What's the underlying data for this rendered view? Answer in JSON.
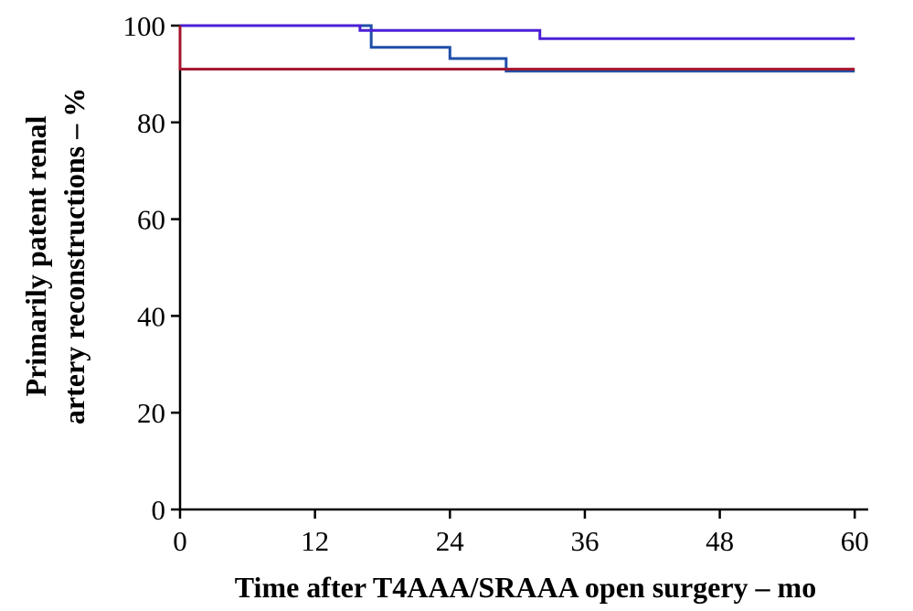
{
  "chart_data": {
    "type": "line",
    "step": "post",
    "xlabel": "Time after T4AAA/SRAAA open surgery – mo",
    "ylabel": [
      "Primarily patent renal",
      "artery reconstructions – %"
    ],
    "xlim": [
      0,
      61.2
    ],
    "xticks": [
      0,
      12,
      24,
      36,
      48,
      60
    ],
    "ylim": [
      0,
      100
    ],
    "yticks": [
      0,
      20,
      40,
      60,
      80,
      100
    ],
    "series": [
      {
        "color": "#1f4fa8",
        "x": [
          0,
          17,
          24,
          29,
          60
        ],
        "values": [
          100,
          95.5,
          93.2,
          90.6,
          90.6
        ]
      },
      {
        "color": "#4b1fd6",
        "x": [
          0,
          16,
          32,
          60
        ],
        "values": [
          100,
          99,
          97.3,
          97.3
        ]
      },
      {
        "color": "#a3142c",
        "x": [
          0,
          0,
          60
        ],
        "values": [
          100,
          91,
          91
        ]
      }
    ]
  }
}
